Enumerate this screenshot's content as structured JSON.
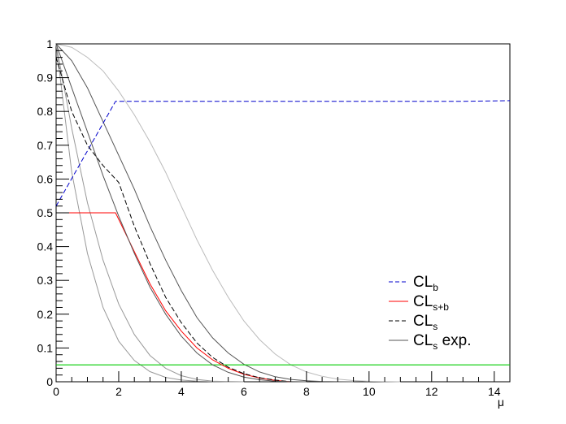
{
  "chart_data": {
    "type": "line",
    "xlabel": "μ",
    "ylabel": "",
    "xlim": [
      0,
      14.5
    ],
    "ylim": [
      0,
      1
    ],
    "x_ticks": [
      "0",
      "2",
      "4",
      "6",
      "8",
      "10",
      "12",
      "14"
    ],
    "y_ticks": [
      "0",
      "0.1",
      "0.2",
      "0.3",
      "0.4",
      "0.5",
      "0.6",
      "0.7",
      "0.8",
      "0.9",
      "1"
    ],
    "grid": false,
    "legend_position": "bottom-right",
    "series": [
      {
        "name": "CLb",
        "legend_main": "CL",
        "legend_sub": "b",
        "legend_suffix": "",
        "color": "#0000cc",
        "dash": "6,3",
        "x": [
          0,
          1.9,
          6,
          13,
          14.5
        ],
        "y": [
          0.52,
          0.83,
          0.83,
          0.83,
          0.832
        ]
      },
      {
        "name": "CLs+b",
        "legend_main": "CL",
        "legend_sub": "s+b",
        "legend_suffix": "",
        "color": "#ff0000",
        "dash": "",
        "x": [
          0,
          1.9,
          2.5,
          3,
          3.5,
          4,
          4.5,
          5,
          5.5,
          6,
          6.5,
          7,
          7.5
        ],
        "y": [
          0.5,
          0.5,
          0.385,
          0.29,
          0.21,
          0.15,
          0.1,
          0.065,
          0.04,
          0.022,
          0.011,
          0.004,
          0.0
        ]
      },
      {
        "name": "CLs",
        "legend_main": "CL",
        "legend_sub": "s",
        "legend_suffix": "",
        "color": "#000000",
        "dash": "6,3",
        "x": [
          0,
          0.5,
          1,
          1.5,
          2,
          2.5,
          3,
          3.5,
          4,
          4.5,
          5,
          5.5,
          6,
          6.5,
          7,
          7.5
        ],
        "y": [
          0.96,
          0.8,
          0.7,
          0.64,
          0.59,
          0.46,
          0.35,
          0.25,
          0.175,
          0.115,
          0.072,
          0.043,
          0.024,
          0.012,
          0.005,
          0.0
        ]
      },
      {
        "name": "CLs exp.",
        "legend_main": "CL",
        "legend_sub": "s",
        "legend_suffix": " exp.",
        "color": "#555555",
        "dash": "",
        "x": [
          0,
          0.5,
          1,
          1.5,
          2,
          2.5,
          3,
          3.5,
          4,
          4.5,
          5,
          5.5,
          6,
          6.5,
          7,
          7.5,
          8
        ],
        "y": [
          1.0,
          0.87,
          0.74,
          0.61,
          0.49,
          0.38,
          0.28,
          0.2,
          0.135,
          0.085,
          0.05,
          0.028,
          0.014,
          0.006,
          0.002,
          0.0005,
          0.0
        ]
      }
    ],
    "band_curves": [
      {
        "color": "#999999",
        "x": [
          0,
          0.5,
          1,
          1.5,
          2,
          2.5,
          3,
          3.5,
          4,
          4.5,
          5,
          5.5,
          6
        ],
        "y": [
          1.0,
          0.62,
          0.38,
          0.22,
          0.12,
          0.063,
          0.03,
          0.013,
          0.005,
          0.002,
          0.0007,
          0.0002,
          0.0
        ]
      },
      {
        "color": "#999999",
        "x": [
          0,
          0.5,
          1,
          1.5,
          2,
          2.5,
          3,
          3.5,
          4,
          4.5,
          5,
          5.5,
          6
        ],
        "y": [
          1.0,
          0.75,
          0.53,
          0.36,
          0.23,
          0.14,
          0.078,
          0.04,
          0.018,
          0.007,
          0.002,
          0.0005,
          0.0
        ]
      },
      {
        "color": "#555555",
        "x": [
          0,
          0.5,
          1,
          1.5,
          2,
          2.5,
          3,
          3.5,
          4,
          4.5,
          5,
          5.5,
          6,
          6.5,
          7,
          7.5,
          8,
          8.5,
          9,
          9.5
        ],
        "y": [
          1.0,
          0.95,
          0.87,
          0.77,
          0.67,
          0.57,
          0.46,
          0.36,
          0.27,
          0.19,
          0.13,
          0.085,
          0.052,
          0.029,
          0.015,
          0.007,
          0.003,
          0.001,
          0.0003,
          0.0
        ]
      },
      {
        "color": "#bbbbbb",
        "x": [
          0,
          0.5,
          1,
          1.5,
          2,
          2.5,
          3,
          3.5,
          4,
          4.5,
          5,
          5.5,
          6,
          6.5,
          7,
          7.5,
          8,
          8.5,
          9,
          9.5,
          10,
          10.5,
          11
        ],
        "y": [
          1.0,
          0.99,
          0.96,
          0.92,
          0.86,
          0.79,
          0.71,
          0.62,
          0.52,
          0.42,
          0.33,
          0.25,
          0.18,
          0.125,
          0.082,
          0.05,
          0.029,
          0.016,
          0.008,
          0.0037,
          0.0015,
          0.0005,
          0.0
        ]
      }
    ],
    "reference_line": {
      "y": 0.05,
      "color": "#00cc00"
    }
  }
}
